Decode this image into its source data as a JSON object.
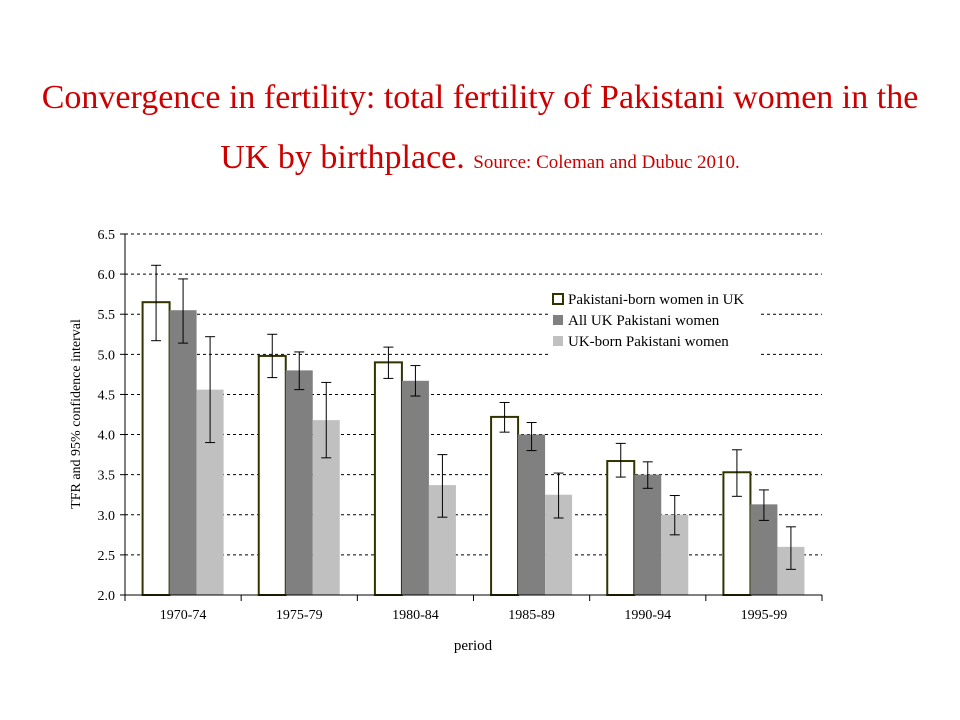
{
  "slide": {
    "title": "Convergence in fertility: total fertility of Pakistani women in the UK by birthplace.",
    "source": "Source: Coleman and Dubuc 2010."
  },
  "colors": {
    "title": "#cc0000",
    "series": [
      "#ffffff",
      "#808080",
      "#c0c0c0"
    ],
    "series_border": [
      "#333300",
      "#808080",
      "#c0c0c0"
    ]
  },
  "chart_data": {
    "type": "bar",
    "categories": [
      "1970-74",
      "1975-79",
      "1980-84",
      "1985-89",
      "1990-94",
      "1995-99"
    ],
    "xlabel": "period",
    "ylabel": "TFR and 95% confidence interval",
    "ylim": [
      2.0,
      6.5
    ],
    "yticks": [
      "2.0",
      "2.5",
      "3.0",
      "3.5",
      "4.0",
      "4.5",
      "5.0",
      "5.5",
      "6.0",
      "6.5"
    ],
    "grid": "horizontal dashed",
    "legend_position": "top-right",
    "series": [
      {
        "name": "Pakistani-born women in UK",
        "values": [
          5.65,
          4.98,
          4.9,
          4.22,
          3.67,
          3.53
        ],
        "ci_low": [
          5.17,
          4.71,
          4.7,
          4.03,
          3.47,
          3.23
        ],
        "ci_high": [
          6.11,
          5.25,
          5.09,
          4.4,
          3.89,
          3.81
        ]
      },
      {
        "name": "All UK Pakistani women",
        "values": [
          5.55,
          4.8,
          4.67,
          4.0,
          3.5,
          3.13
        ],
        "ci_low": [
          5.14,
          4.56,
          4.48,
          3.8,
          3.33,
          2.93
        ],
        "ci_high": [
          5.94,
          5.03,
          4.86,
          4.15,
          3.66,
          3.31
        ]
      },
      {
        "name": "UK-born Pakistani women",
        "values": [
          4.56,
          4.18,
          3.37,
          3.25,
          3.0,
          2.6
        ],
        "ci_low": [
          3.9,
          3.71,
          2.97,
          2.96,
          2.75,
          2.32
        ],
        "ci_high": [
          5.22,
          4.65,
          3.75,
          3.52,
          3.24,
          2.85
        ]
      }
    ]
  }
}
